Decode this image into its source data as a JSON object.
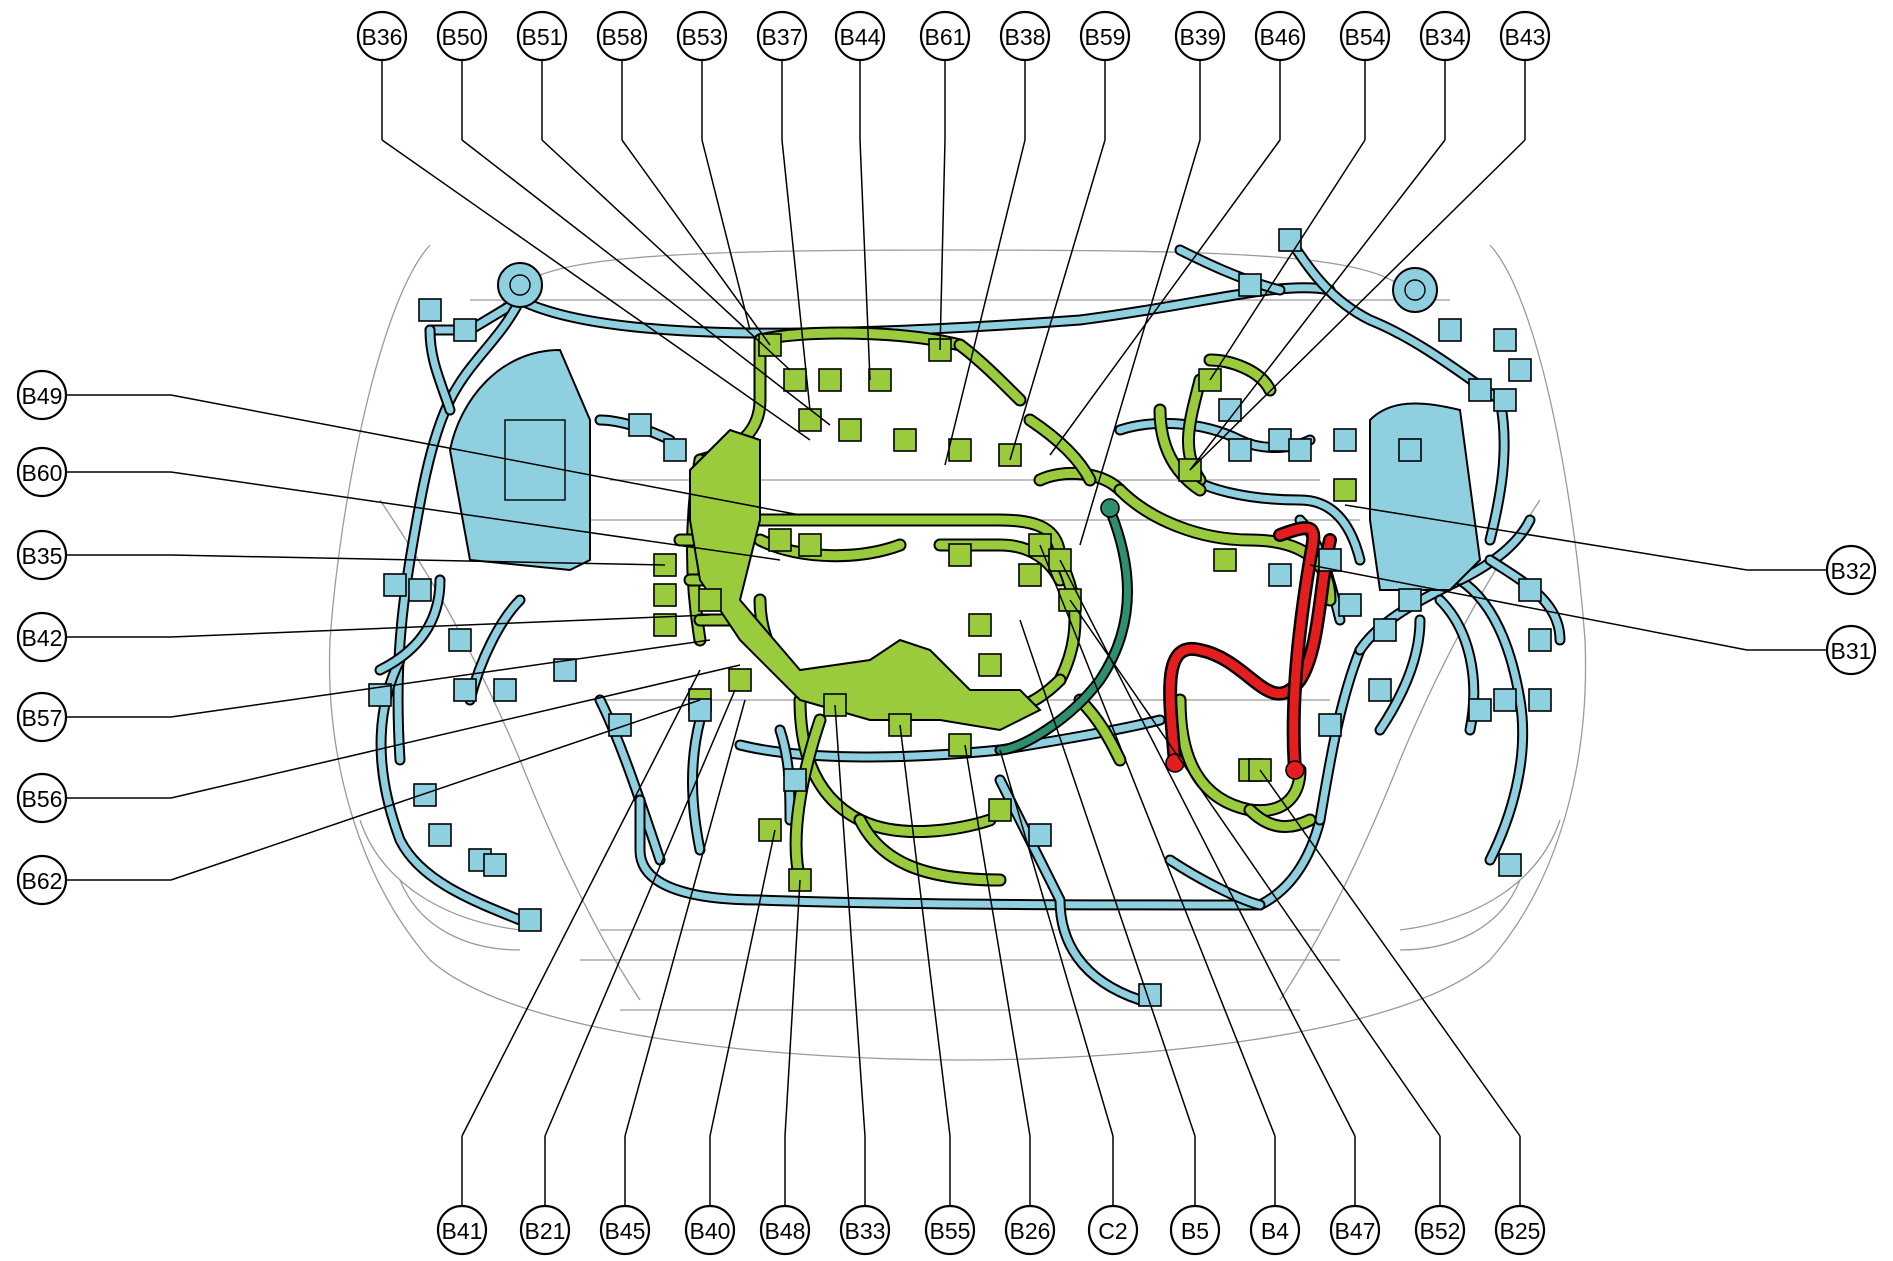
{
  "colors": {
    "engine_harness": "#9acb3c",
    "body_harness": "#8fd0e0",
    "battery_cable": "#e41e1e",
    "ground_strap": "#2e8f6f",
    "body_outline": "#9a9a9a",
    "callout_stroke": "#000000"
  },
  "callouts": {
    "top": [
      "B36",
      "B50",
      "B51",
      "B58",
      "B53",
      "B37",
      "B44",
      "B61",
      "B38",
      "B59",
      "B39",
      "B46",
      "B54",
      "B34",
      "B43"
    ],
    "left": [
      "B49",
      "B60",
      "B35",
      "B42",
      "B57",
      "B56",
      "B62"
    ],
    "right": [
      "B32",
      "B31"
    ],
    "bottom": [
      "B41",
      "B21",
      "B45",
      "B40",
      "B48",
      "B33",
      "B55",
      "B26",
      "C2",
      "B5",
      "B4",
      "B47",
      "B52",
      "B25"
    ]
  }
}
